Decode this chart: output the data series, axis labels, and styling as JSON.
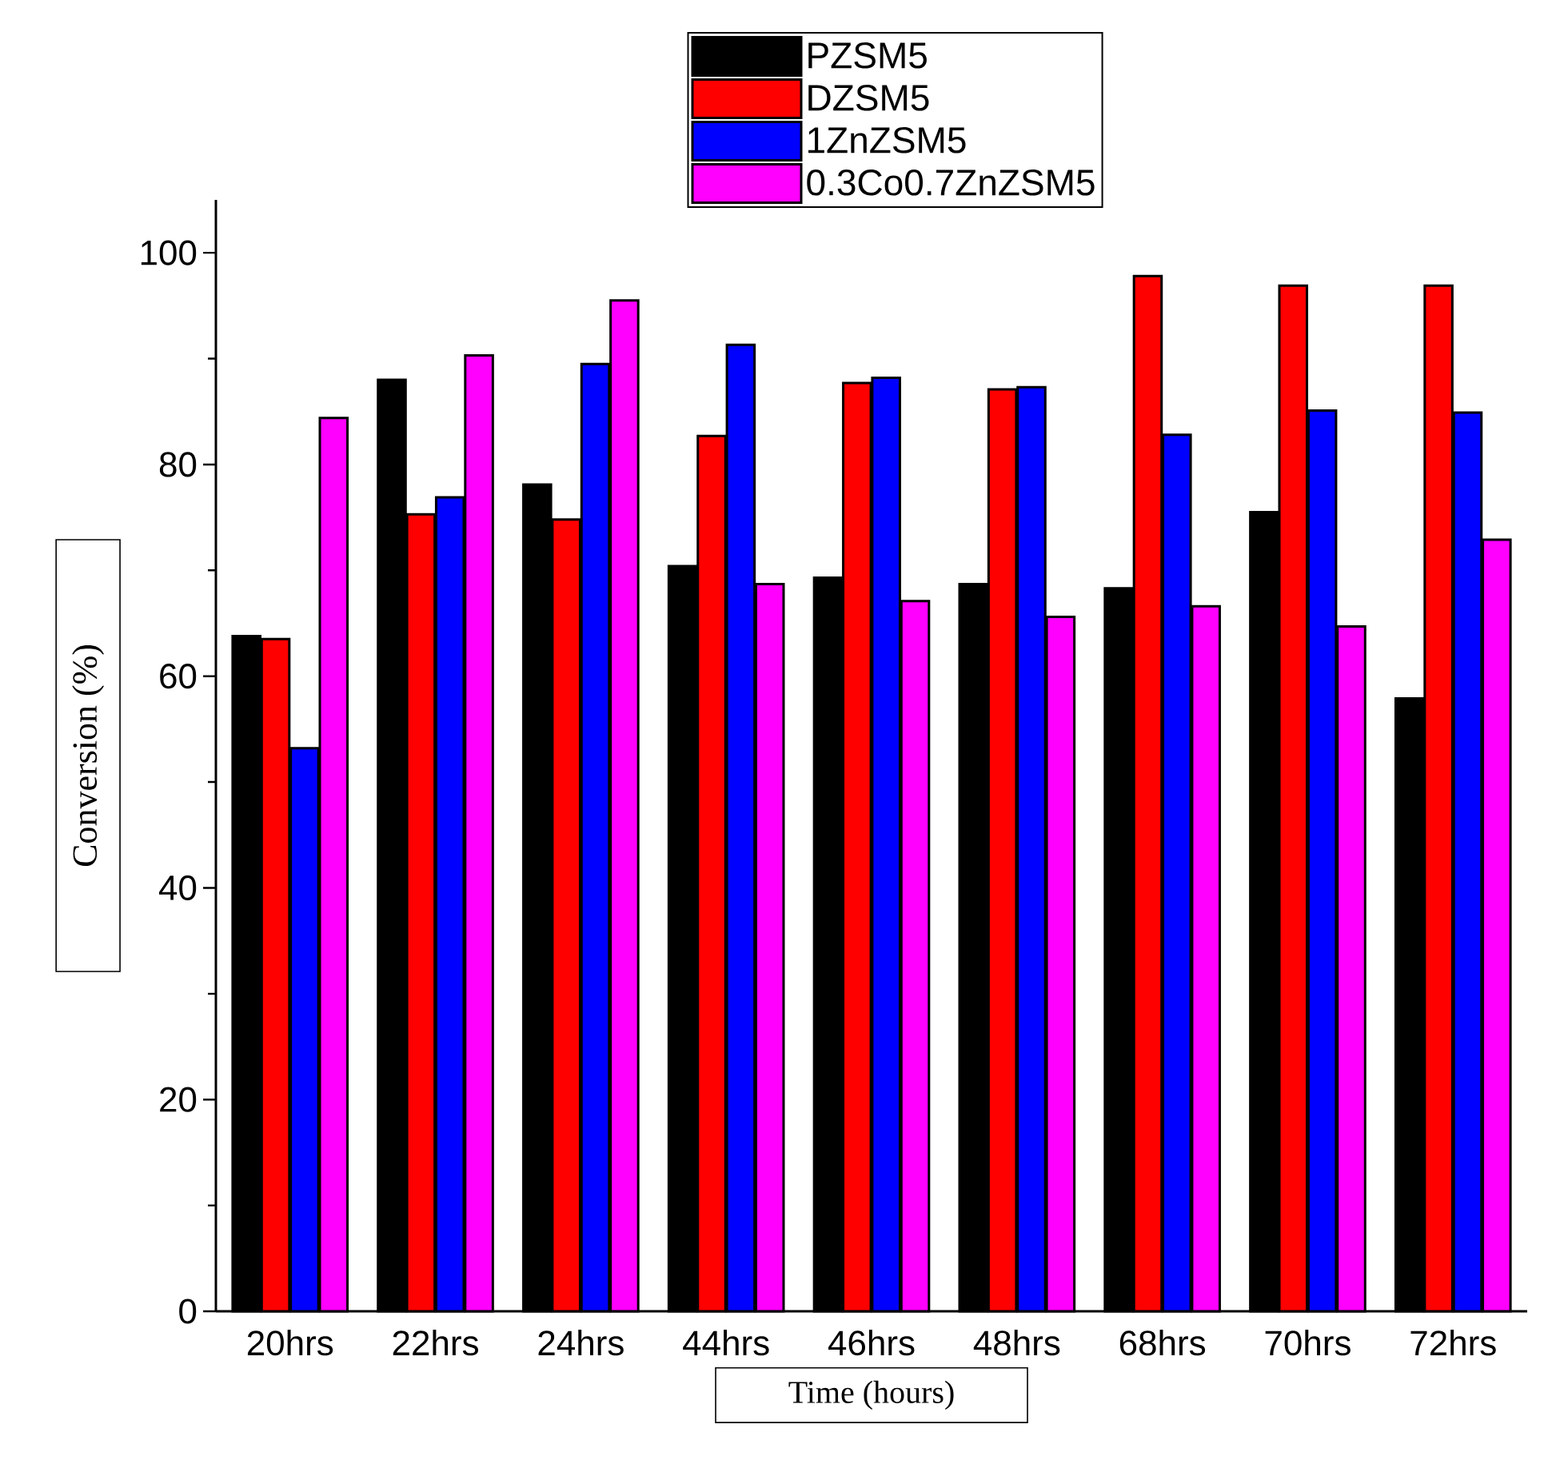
{
  "chart_data": {
    "type": "bar",
    "xlabel": "Time (hours)",
    "ylabel": "Conversion (%)",
    "categories": [
      "20hrs",
      "22hrs",
      "24hrs",
      "44hrs",
      "46hrs",
      "48hrs",
      "68hrs",
      "70hrs",
      "72hrs"
    ],
    "series": [
      {
        "name": "PZSM5",
        "color": "#000000",
        "values": [
          63.8,
          88.0,
          78.1,
          70.4,
          69.3,
          68.7,
          68.3,
          75.5,
          57.9
        ]
      },
      {
        "name": "DZSM5",
        "color": "#ff0000",
        "values": [
          63.5,
          75.3,
          74.8,
          82.7,
          87.7,
          87.1,
          97.8,
          96.9,
          96.9
        ]
      },
      {
        "name": "1ZnZSM5",
        "color": "#0000ff",
        "values": [
          53.2,
          76.9,
          89.5,
          91.3,
          88.2,
          87.3,
          82.8,
          85.1,
          84.9
        ]
      },
      {
        "name": "0.3Co0.7ZnZSM5",
        "color": "#ff00ff",
        "values": [
          84.4,
          90.3,
          95.5,
          68.7,
          67.1,
          65.6,
          66.6,
          64.7,
          72.9
        ]
      }
    ],
    "ylim": [
      0,
      105
    ],
    "yticks": [
      0,
      20,
      40,
      60,
      80,
      100
    ],
    "grid": false,
    "legend": "top"
  }
}
